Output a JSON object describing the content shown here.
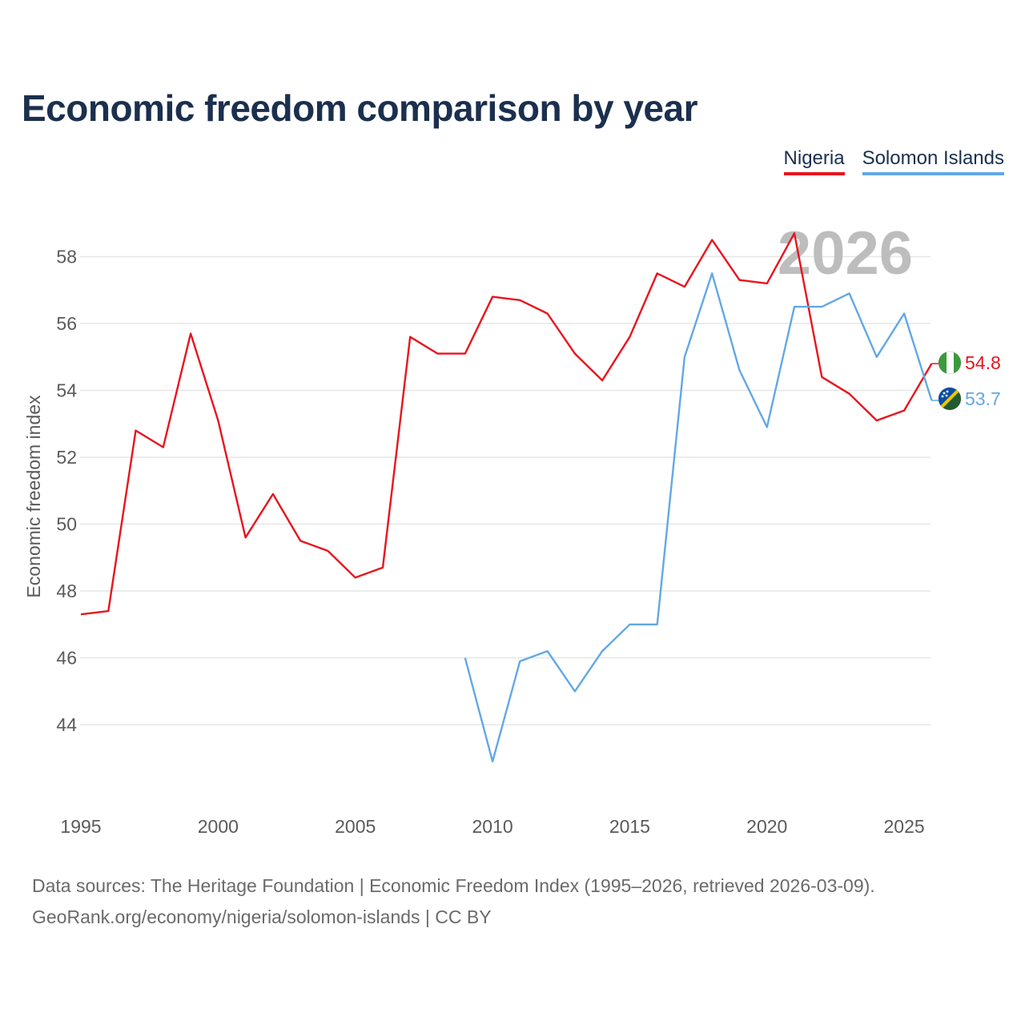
{
  "header": {
    "title": "Economic freedom comparison by year"
  },
  "legend": [
    {
      "label": "Nigeria",
      "color": "#e8141e"
    },
    {
      "label": "Solomon Islands",
      "color": "#62a8e5"
    }
  ],
  "chart_data": {
    "type": "line",
    "title": "Economic freedom comparison by year",
    "xlabel": "",
    "ylabel": "Economic freedom index",
    "watermark_year": "2026",
    "xlim": [
      1995,
      2026
    ],
    "ylim": [
      42,
      59.5
    ],
    "xticks": [
      1995,
      2000,
      2005,
      2010,
      2015,
      2020,
      2025
    ],
    "yticks": [
      44,
      46,
      48,
      50,
      52,
      54,
      56,
      58
    ],
    "grid": true,
    "legend_position": "top-right",
    "series": [
      {
        "name": "Nigeria",
        "color": "#e8141e",
        "end_label": "54.8",
        "flag": "nigeria-flag",
        "points": [
          [
            1995,
            47.3
          ],
          [
            1996,
            47.4
          ],
          [
            1997,
            52.8
          ],
          [
            1998,
            52.3
          ],
          [
            1999,
            55.7
          ],
          [
            2000,
            53.1
          ],
          [
            2001,
            49.6
          ],
          [
            2002,
            50.9
          ],
          [
            2003,
            49.5
          ],
          [
            2004,
            49.2
          ],
          [
            2005,
            48.4
          ],
          [
            2006,
            48.7
          ],
          [
            2007,
            55.6
          ],
          [
            2008,
            55.1
          ],
          [
            2009,
            55.1
          ],
          [
            2010,
            56.8
          ],
          [
            2011,
            56.7
          ],
          [
            2012,
            56.3
          ],
          [
            2013,
            55.1
          ],
          [
            2014,
            54.3
          ],
          [
            2015,
            55.6
          ],
          [
            2016,
            57.5
          ],
          [
            2017,
            57.1
          ],
          [
            2018,
            58.5
          ],
          [
            2019,
            57.3
          ],
          [
            2020,
            57.2
          ],
          [
            2021,
            58.7
          ],
          [
            2022,
            54.4
          ],
          [
            2023,
            53.9
          ],
          [
            2024,
            53.1
          ],
          [
            2025,
            53.4
          ],
          [
            2026,
            54.8
          ]
        ]
      },
      {
        "name": "Solomon Islands",
        "color": "#62a8e5",
        "end_label": "53.7",
        "flag": "solomon-islands-flag",
        "points": [
          [
            2009,
            46.0
          ],
          [
            2010,
            42.9
          ],
          [
            2011,
            45.9
          ],
          [
            2012,
            46.2
          ],
          [
            2013,
            45.0
          ],
          [
            2014,
            46.2
          ],
          [
            2015,
            47.0
          ],
          [
            2016,
            47.0
          ],
          [
            2017,
            55.0
          ],
          [
            2018,
            57.5
          ],
          [
            2019,
            54.6
          ],
          [
            2020,
            52.9
          ],
          [
            2021,
            56.5
          ],
          [
            2022,
            56.5
          ],
          [
            2023,
            56.9
          ],
          [
            2024,
            55.0
          ],
          [
            2025,
            56.3
          ],
          [
            2026,
            53.7
          ]
        ]
      }
    ]
  },
  "footer": {
    "line1": "Data sources: The Heritage Foundation | Economic Freedom Index (1995–2026, retrieved 2026-03-09).",
    "line2": "GeoRank.org/economy/nigeria/solomon-islands | CC BY"
  }
}
